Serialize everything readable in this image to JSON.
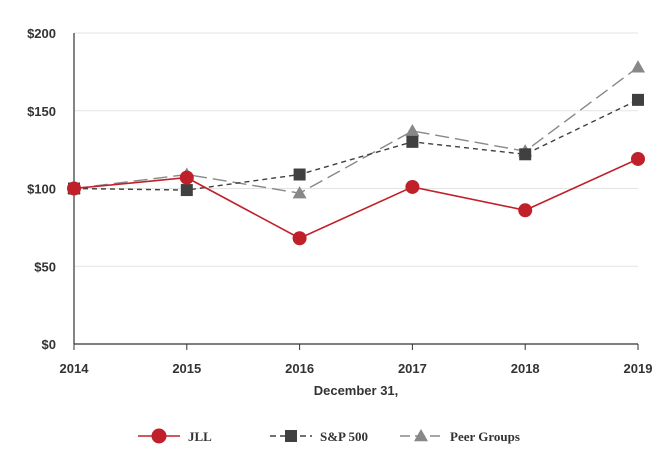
{
  "chart_data": {
    "type": "line",
    "title": "",
    "xlabel": "December 31,",
    "ylabel": "",
    "categories": [
      "2014",
      "2015",
      "2016",
      "2017",
      "2018",
      "2019"
    ],
    "ylim": [
      0,
      200
    ],
    "yticks": [
      0,
      50,
      100,
      150,
      200
    ],
    "ytick_labels": [
      "$0",
      "$50",
      "$100",
      "$150",
      "$200"
    ],
    "grid": true,
    "legend_position": "bottom",
    "series": [
      {
        "name": "JLL",
        "values": [
          100,
          107,
          68,
          101,
          86,
          119
        ],
        "color": "#c0202a",
        "marker": "circle",
        "line": "solid"
      },
      {
        "name": "S&P 500",
        "values": [
          100,
          99,
          109,
          130,
          122,
          157
        ],
        "color": "#404040",
        "marker": "square",
        "line": "dashed"
      },
      {
        "name": "Peer Groups",
        "values": [
          100,
          109,
          97,
          137,
          124,
          178
        ],
        "color": "#888888",
        "marker": "triangle",
        "line": "longdash"
      }
    ]
  }
}
